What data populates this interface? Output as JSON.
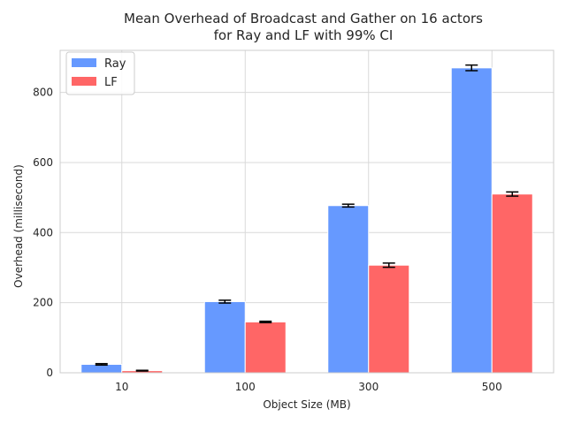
{
  "chart_data": {
    "type": "bar",
    "title_lines": [
      "Mean Overhead of Broadcast and Gather on 16 actors",
      "for Ray and LF with 99% CI"
    ],
    "xlabel": "Object Size (MB)",
    "ylabel": "Overhead (millisecond)",
    "categories": [
      "10",
      "100",
      "300",
      "500"
    ],
    "ylim": [
      0,
      920
    ],
    "yticks": [
      0,
      200,
      400,
      600,
      800
    ],
    "grid": true,
    "legend_position": "top-left",
    "series": [
      {
        "name": "Ray",
        "color": "#6699ff",
        "values": [
          24,
          203,
          477,
          870
        ],
        "ci": [
          2,
          4,
          4,
          8
        ]
      },
      {
        "name": "LF",
        "color": "#ff6666",
        "values": [
          6,
          145,
          307,
          510
        ],
        "ci": [
          1,
          2,
          6,
          6
        ]
      }
    ]
  }
}
